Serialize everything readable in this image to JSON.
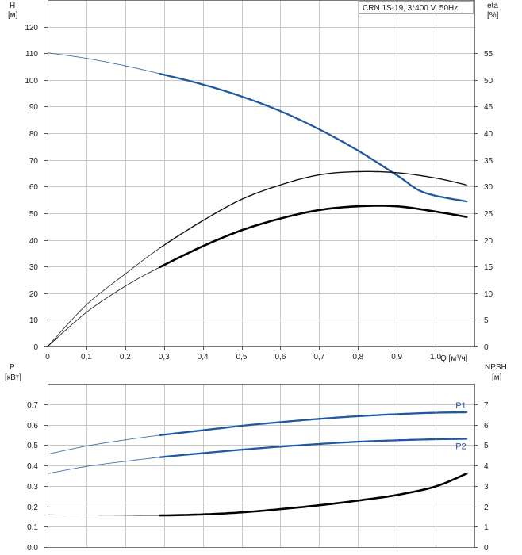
{
  "chart_data": [
    {
      "type": "line",
      "title": "CRN 1S-19, 3*400 V, 50Hz",
      "ylabel_left": "H",
      "ylabel_left_unit": "[м]",
      "ylabel_right": "eta",
      "ylabel_right_unit": "[%]",
      "xlabel": "Q [м³/ч]",
      "xlim": [
        0,
        1.1
      ],
      "ylim_left": [
        0,
        130
      ],
      "ylim_right": [
        0,
        65
      ],
      "x_ticks": [
        "0",
        "0,1",
        "0,2",
        "0,3",
        "0,4",
        "0,5",
        "0,6",
        "0,7",
        "0,8",
        "0,9",
        "1,0"
      ],
      "y_left_ticks": [
        "0",
        "10",
        "20",
        "30",
        "40",
        "50",
        "60",
        "70",
        "80",
        "90",
        "100",
        "110",
        "120"
      ],
      "y_right_ticks": [
        "0",
        "5",
        "10",
        "15",
        "20",
        "25",
        "30",
        "35",
        "40",
        "45",
        "50",
        "55"
      ],
      "grid": true,
      "series": [
        {
          "axis": "left",
          "color": "#1f5aa0",
          "x": [
            0,
            0.1,
            0.2,
            0.29,
            0.4,
            0.5,
            0.6,
            0.7,
            0.8,
            0.9,
            0.97,
            1.08
          ],
          "y": [
            110.2,
            108.1,
            105.3,
            102.3,
            98.3,
            93.8,
            88.3,
            81.5,
            73.5,
            64.3,
            57.8,
            54.4
          ],
          "operating_from": 0.29
        },
        {
          "axis": "right",
          "color": "#111111",
          "x": [
            0,
            0.1,
            0.2,
            0.29,
            0.4,
            0.5,
            0.6,
            0.7,
            0.8,
            0.9,
            1.0,
            1.08
          ],
          "y": [
            0,
            7.8,
            13.6,
            18.5,
            23.6,
            27.6,
            30.3,
            32.2,
            32.8,
            32.6,
            31.6,
            30.3
          ],
          "operating_from": 0.29
        },
        {
          "axis": "right",
          "color": "#000000",
          "x": [
            0,
            0.1,
            0.2,
            0.29,
            0.4,
            0.5,
            0.6,
            0.7,
            0.8,
            0.9,
            1.0,
            1.08
          ],
          "y": [
            0,
            6.4,
            11.3,
            14.9,
            18.8,
            21.8,
            24.0,
            25.6,
            26.3,
            26.3,
            25.3,
            24.3
          ],
          "operating_from": 0.29
        }
      ]
    },
    {
      "type": "line",
      "ylabel_left": "P",
      "ylabel_left_unit": "[кВт]",
      "ylabel_right": "NPSH",
      "ylabel_right_unit": "[м]",
      "xlim": [
        0,
        1.1
      ],
      "ylim_left": [
        0,
        0.8
      ],
      "ylim_right": [
        0,
        8
      ],
      "y_left_ticks": [
        "0.0",
        "0.1",
        "0.2",
        "0.3",
        "0.4",
        "0.5",
        "0.6",
        "0.7"
      ],
      "y_right_ticks": [
        "0",
        "1",
        "2",
        "3",
        "4",
        "5",
        "6",
        "7"
      ],
      "grid": true,
      "series": [
        {
          "name": "P1",
          "axis": "left",
          "color": "#1f5aa0",
          "x": [
            0,
            0.1,
            0.2,
            0.29,
            0.4,
            0.5,
            0.6,
            0.7,
            0.8,
            0.9,
            1.0,
            1.08
          ],
          "y": [
            0.455,
            0.495,
            0.525,
            0.548,
            0.572,
            0.594,
            0.612,
            0.628,
            0.641,
            0.651,
            0.658,
            0.66
          ],
          "operating_from": 0.29
        },
        {
          "name": "P2",
          "axis": "left",
          "color": "#1f5aa0",
          "x": [
            0,
            0.1,
            0.2,
            0.29,
            0.4,
            0.5,
            0.6,
            0.7,
            0.8,
            0.9,
            1.0,
            1.08
          ],
          "y": [
            0.36,
            0.395,
            0.42,
            0.44,
            0.46,
            0.477,
            0.492,
            0.505,
            0.516,
            0.523,
            0.528,
            0.53
          ],
          "operating_from": 0.29
        },
        {
          "axis": "right",
          "color": "#000000",
          "x": [
            0,
            0.1,
            0.2,
            0.29,
            0.4,
            0.5,
            0.6,
            0.7,
            0.8,
            0.9,
            1.0,
            1.08
          ],
          "y": [
            1.58,
            1.57,
            1.56,
            1.55,
            1.6,
            1.7,
            1.86,
            2.05,
            2.28,
            2.55,
            2.97,
            3.6
          ],
          "operating_from": 0.29
        }
      ]
    }
  ]
}
